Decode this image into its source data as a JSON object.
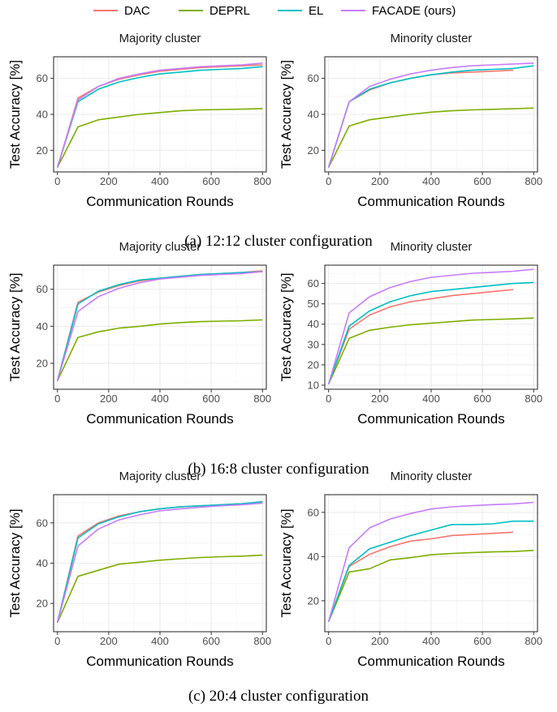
{
  "legend": {
    "colors": {
      "DAC": "#F8766D",
      "DEPRL": "#7CAE00",
      "EL": "#00BFC4",
      "FACADE (ours)": "#C77CFF"
    }
  },
  "chart_data": [
    {
      "type": "line",
      "title": "Majority cluster",
      "xlabel": "Communication Rounds",
      "ylabel": "Test Accuracy [%]",
      "xlim": [
        -15,
        815
      ],
      "ylim": [
        8,
        72
      ],
      "xticks": [
        0,
        200,
        400,
        600,
        800
      ],
      "yticks": [
        20,
        40,
        60
      ],
      "caption": "(a) 12:12 cluster configuration",
      "series": [
        {
          "name": "DAC",
          "x": [
            0,
            80,
            160,
            240,
            320,
            400,
            480,
            560,
            640,
            720,
            800
          ],
          "y": [
            10.5,
            49,
            55.5,
            59.5,
            62,
            64,
            65,
            66,
            66.5,
            67,
            67.5
          ]
        },
        {
          "name": "DEPRL",
          "x": [
            0,
            80,
            160,
            240,
            320,
            400,
            480,
            560,
            640,
            720,
            800
          ],
          "y": [
            10.5,
            33,
            37,
            38.5,
            40,
            41,
            42,
            42.5,
            42.7,
            42.9,
            43.2
          ]
        },
        {
          "name": "EL",
          "x": [
            0,
            80,
            160,
            240,
            320,
            400,
            480,
            560,
            640,
            720,
            800
          ],
          "y": [
            10.5,
            47,
            54,
            58,
            60.5,
            62.5,
            63.5,
            64.5,
            65,
            65.5,
            66.5
          ]
        },
        {
          "name": "FACADE (ours)",
          "x": [
            0,
            80,
            160,
            240,
            320,
            400,
            480,
            560,
            640,
            720,
            800
          ],
          "y": [
            10.5,
            48,
            55.5,
            60,
            62.5,
            64.5,
            65.5,
            66.5,
            67,
            67.5,
            68.5
          ]
        }
      ]
    },
    {
      "type": "line",
      "title": "Minority cluster",
      "xlabel": "Communication Rounds",
      "ylabel": "Test Accuracy [%]",
      "xlim": [
        -15,
        815
      ],
      "ylim": [
        8,
        72
      ],
      "xticks": [
        0,
        200,
        400,
        600,
        800
      ],
      "yticks": [
        20,
        40,
        60
      ],
      "series": [
        {
          "name": "DAC",
          "x": [
            0,
            80,
            160,
            240,
            320,
            400,
            480,
            560,
            640,
            720
          ],
          "y": [
            10.5,
            47,
            53.5,
            57.5,
            60,
            62,
            63,
            63.5,
            64,
            64.5
          ]
        },
        {
          "name": "DEPRL",
          "x": [
            0,
            80,
            160,
            240,
            320,
            400,
            480,
            560,
            640,
            720,
            800
          ],
          "y": [
            10.5,
            33.5,
            37,
            38.5,
            40,
            41.2,
            42,
            42.5,
            42.8,
            43.1,
            43.5
          ]
        },
        {
          "name": "EL",
          "x": [
            0,
            80,
            160,
            240,
            320,
            400,
            480,
            560,
            640,
            720,
            800
          ],
          "y": [
            10.5,
            47,
            54,
            57.5,
            60,
            62,
            63.5,
            64.5,
            65,
            65.5,
            67
          ]
        },
        {
          "name": "FACADE (ours)",
          "x": [
            0,
            80,
            160,
            240,
            320,
            400,
            480,
            560,
            640,
            720,
            800
          ],
          "y": [
            10.5,
            47,
            55.5,
            59.5,
            62.5,
            64.5,
            66,
            67,
            67.5,
            68,
            68.5
          ]
        }
      ]
    },
    {
      "type": "line",
      "title": "Majority cluster",
      "xlabel": "Communication Rounds",
      "ylabel": "Test Accuracy [%]",
      "xlim": [
        -15,
        815
      ],
      "ylim": [
        6,
        73
      ],
      "xticks": [
        0,
        200,
        400,
        600,
        800
      ],
      "yticks": [
        20,
        40,
        60
      ],
      "caption": "(b) 16:8 cluster configuration",
      "series": [
        {
          "name": "DAC",
          "x": [
            0,
            80,
            160,
            240,
            320,
            400,
            480,
            560,
            640,
            720,
            800
          ],
          "y": [
            10.5,
            53,
            58.5,
            62,
            64.5,
            66,
            67,
            68,
            68.5,
            69,
            70
          ]
        },
        {
          "name": "DEPRL",
          "x": [
            0,
            80,
            160,
            240,
            320,
            400,
            480,
            560,
            640,
            720,
            800
          ],
          "y": [
            10.5,
            34,
            37,
            39,
            40,
            41.2,
            42,
            42.5,
            42.8,
            43,
            43.5
          ]
        },
        {
          "name": "EL",
          "x": [
            0,
            80,
            160,
            240,
            320,
            400,
            480,
            560,
            640,
            720,
            800
          ],
          "y": [
            10.5,
            52,
            59,
            62.5,
            65,
            66,
            67,
            68,
            68.5,
            69,
            69.5
          ]
        },
        {
          "name": "FACADE (ours)",
          "x": [
            0,
            80,
            160,
            240,
            320,
            400,
            480,
            560,
            640,
            720,
            800
          ],
          "y": [
            10.5,
            48,
            56,
            60.5,
            63.5,
            65.5,
            66.5,
            67.5,
            68,
            68.5,
            69.5
          ]
        }
      ]
    },
    {
      "type": "line",
      "title": "Minority cluster",
      "xlabel": "Communication Rounds",
      "ylabel": "Test Accuracy [%]",
      "xlim": [
        -15,
        815
      ],
      "ylim": [
        8,
        69
      ],
      "xticks": [
        0,
        200,
        400,
        600,
        800
      ],
      "yticks": [
        10,
        20,
        30,
        40,
        50,
        60
      ],
      "series": [
        {
          "name": "DAC",
          "x": [
            0,
            80,
            160,
            240,
            320,
            400,
            480,
            560,
            640,
            720
          ],
          "y": [
            10.5,
            37.5,
            44.5,
            48.5,
            51,
            52.5,
            54,
            55,
            56,
            57
          ]
        },
        {
          "name": "DEPRL",
          "x": [
            0,
            80,
            160,
            240,
            320,
            400,
            480,
            560,
            640,
            720,
            800
          ],
          "y": [
            10.5,
            33,
            37,
            38.5,
            39.7,
            40.5,
            41.2,
            42,
            42.3,
            42.6,
            43
          ]
        },
        {
          "name": "EL",
          "x": [
            0,
            80,
            160,
            240,
            320,
            400,
            480,
            560,
            640,
            720,
            800
          ],
          "y": [
            10.5,
            39,
            46.5,
            51,
            54,
            56,
            57,
            58,
            59,
            60,
            60.5
          ]
        },
        {
          "name": "FACADE (ours)",
          "x": [
            0,
            80,
            160,
            240,
            320,
            400,
            480,
            560,
            640,
            720,
            800
          ],
          "y": [
            10.5,
            45.5,
            53.5,
            58,
            61,
            63,
            64,
            65,
            65.5,
            66,
            67
          ]
        }
      ]
    },
    {
      "type": "line",
      "title": "Majority cluster",
      "xlabel": "Communication Rounds",
      "ylabel": "Test Accuracy [%]",
      "xlim": [
        -15,
        815
      ],
      "ylim": [
        6,
        74
      ],
      "xticks": [
        0,
        200,
        400,
        600,
        800
      ],
      "yticks": [
        20,
        40,
        60
      ],
      "caption": "(c) 20:4 cluster configuration",
      "series": [
        {
          "name": "DAC",
          "x": [
            0,
            80,
            160,
            240,
            320,
            400,
            480,
            560,
            640,
            720,
            800
          ],
          "y": [
            10.5,
            53.5,
            60,
            63.5,
            65.5,
            67,
            68,
            68.5,
            69,
            69.5,
            70.5
          ]
        },
        {
          "name": "DEPRL",
          "x": [
            0,
            80,
            160,
            240,
            320,
            400,
            480,
            560,
            640,
            720,
            800
          ],
          "y": [
            10.5,
            33.5,
            36.5,
            39.5,
            40.5,
            41.5,
            42.2,
            42.8,
            43.2,
            43.5,
            44
          ]
        },
        {
          "name": "EL",
          "x": [
            0,
            80,
            160,
            240,
            320,
            400,
            480,
            560,
            640,
            720,
            800
          ],
          "y": [
            10.5,
            52.5,
            59.5,
            63,
            65.5,
            67,
            68,
            68.5,
            69,
            69.5,
            70.5
          ]
        },
        {
          "name": "FACADE (ours)",
          "x": [
            0,
            80,
            160,
            240,
            320,
            400,
            480,
            560,
            640,
            720,
            800
          ],
          "y": [
            10.5,
            48.5,
            57,
            61.5,
            64,
            66,
            67,
            67.8,
            68.5,
            69,
            69.8
          ]
        }
      ]
    },
    {
      "type": "line",
      "title": "Minority cluster",
      "xlabel": "Communication Rounds",
      "ylabel": "Test Accuracy [%]",
      "xlim": [
        -15,
        815
      ],
      "ylim": [
        6,
        68
      ],
      "xticks": [
        0,
        200,
        400,
        600,
        800
      ],
      "yticks": [
        20,
        40,
        60
      ],
      "series": [
        {
          "name": "DAC",
          "x": [
            0,
            80,
            160,
            240,
            320,
            400,
            480,
            560,
            640,
            720
          ],
          "y": [
            10.5,
            35.5,
            41,
            44.5,
            47,
            48,
            49.5,
            50,
            50.5,
            51
          ]
        },
        {
          "name": "DEPRL",
          "x": [
            0,
            80,
            160,
            240,
            320,
            400,
            480,
            560,
            640,
            720,
            800
          ],
          "y": [
            10.5,
            33,
            34.5,
            38.5,
            39.5,
            40.8,
            41.4,
            41.8,
            42.1,
            42.3,
            42.8
          ]
        },
        {
          "name": "EL",
          "x": [
            0,
            80,
            160,
            240,
            320,
            400,
            480,
            560,
            640,
            720,
            800
          ],
          "y": [
            10.5,
            36,
            43.5,
            46.5,
            49.5,
            52,
            54.5,
            54.5,
            54.8,
            56,
            56
          ]
        },
        {
          "name": "FACADE (ours)",
          "x": [
            0,
            80,
            160,
            240,
            320,
            400,
            480,
            560,
            640,
            720,
            800
          ],
          "y": [
            10.5,
            44,
            53,
            57,
            59.5,
            61.5,
            62.5,
            63,
            63.5,
            63.8,
            64.5
          ]
        }
      ]
    }
  ]
}
